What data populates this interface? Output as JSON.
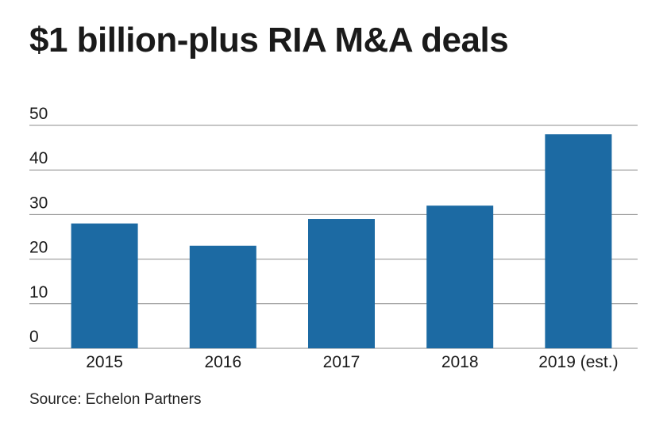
{
  "title": "$1 billion-plus RIA M&A deals",
  "source": "Source: Echelon Partners",
  "chart_data": {
    "type": "bar",
    "title": "$1 billion-plus RIA M&A deals",
    "categories": [
      "2015",
      "2016",
      "2017",
      "2018",
      "2019 (est.)"
    ],
    "values": [
      28,
      23,
      29,
      32,
      48
    ],
    "ylim": [
      0,
      50
    ],
    "yticks": [
      0,
      10,
      20,
      30,
      40,
      50
    ],
    "grid": true,
    "bar_color": "#1c6aa3",
    "grid_color": "#8c8c8c",
    "xlabel": "",
    "ylabel": ""
  }
}
